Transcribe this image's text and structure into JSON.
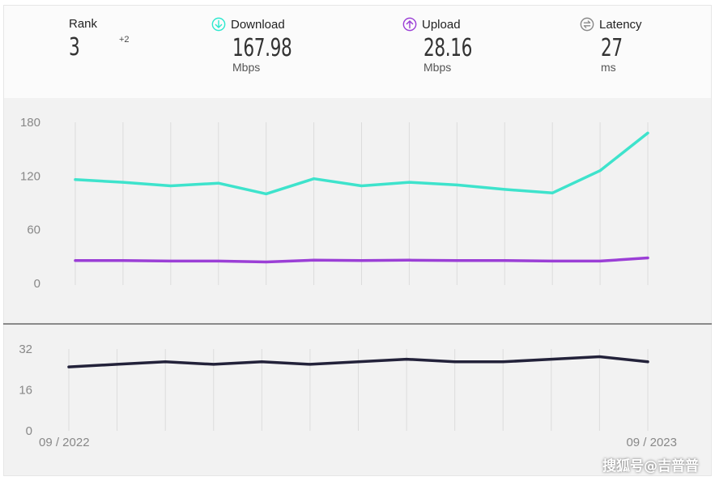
{
  "stats": {
    "rank": {
      "label": "Rank",
      "value": "3",
      "change": "+2"
    },
    "download": {
      "label": "Download",
      "value": "167.98",
      "unit": "Mbps",
      "color": "#2ee8cf"
    },
    "upload": {
      "label": "Upload",
      "value": "28.16",
      "unit": "Mbps",
      "color": "#9b3fd6"
    },
    "latency": {
      "label": "Latency",
      "value": "27",
      "unit": "ms",
      "color": "#8a8a8a"
    }
  },
  "chart_data": [
    {
      "type": "line",
      "x": [
        "09 / 2022",
        "",
        "",
        "",
        "",
        "",
        "",
        "",
        "",
        "",
        "",
        "",
        "09 / 2023"
      ],
      "series": [
        {
          "name": "Download",
          "color": "#3ee3cc",
          "values": [
            116,
            113,
            109,
            112,
            100,
            117,
            109,
            113,
            110,
            105,
            101,
            126,
            168
          ]
        },
        {
          "name": "Upload",
          "color": "#9b3fd6",
          "values": [
            25.5,
            25.5,
            25,
            25,
            24,
            26,
            25.5,
            26,
            25.5,
            25.5,
            25,
            25,
            28.5
          ]
        }
      ],
      "yticks": [
        "180",
        "120",
        "60",
        "0"
      ],
      "ylim": [
        0,
        180
      ],
      "grid": "vertical"
    },
    {
      "type": "line",
      "x": [
        "09 / 2022",
        "",
        "",
        "",
        "",
        "",
        "",
        "",
        "",
        "",
        "",
        "",
        "09 / 2023"
      ],
      "series": [
        {
          "name": "Latency",
          "color": "#23223a",
          "values": [
            25,
            26,
            27,
            26,
            27,
            26,
            27,
            28,
            27,
            27,
            28,
            29,
            27
          ]
        }
      ],
      "yticks": [
        "32",
        "16",
        "0"
      ],
      "ylim": [
        0,
        32
      ],
      "xticks": [
        "09 / 2022",
        "09 / 2023"
      ],
      "grid": "vertical"
    }
  ],
  "watermark": "搜狐号@吉普普"
}
